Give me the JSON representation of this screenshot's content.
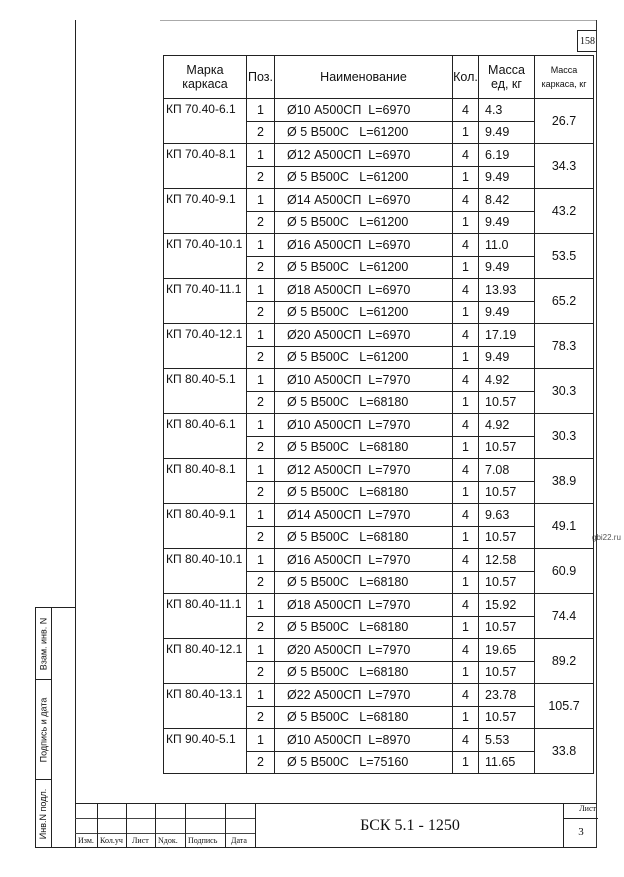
{
  "page_number": "158",
  "watermark": "gbi22.ru",
  "table": {
    "headers": [
      "Марка каркаса",
      "Поз.",
      "Наименование",
      "Кол.",
      "Масса ед, кг",
      "Масса каркаса, кг"
    ],
    "groups": [
      {
        "mark": "КП 70.40-6.1",
        "total": "26.7",
        "rows": [
          [
            "1",
            "Ø10 А500СП  L=6970",
            "4",
            "4.3"
          ],
          [
            "2",
            "Ø 5 В500С   L=61200",
            "1",
            "9.49"
          ]
        ]
      },
      {
        "mark": "КП 70.40-8.1",
        "total": "34.3",
        "rows": [
          [
            "1",
            "Ø12 А500СП  L=6970",
            "4",
            "6.19"
          ],
          [
            "2",
            "Ø 5 В500С   L=61200",
            "1",
            "9.49"
          ]
        ]
      },
      {
        "mark": "КП 70.40-9.1",
        "total": "43.2",
        "rows": [
          [
            "1",
            "Ø14 А500СП  L=6970",
            "4",
            "8.42"
          ],
          [
            "2",
            "Ø 5 В500С   L=61200",
            "1",
            "9.49"
          ]
        ]
      },
      {
        "mark": "КП 70.40-10.1",
        "total": "53.5",
        "rows": [
          [
            "1",
            "Ø16 А500СП  L=6970",
            "4",
            "11.0"
          ],
          [
            "2",
            "Ø 5 В500С   L=61200",
            "1",
            "9.49"
          ]
        ]
      },
      {
        "mark": "КП 70.40-11.1",
        "total": "65.2",
        "rows": [
          [
            "1",
            "Ø18 А500СП  L=6970",
            "4",
            "13.93"
          ],
          [
            "2",
            "Ø 5 В500С   L=61200",
            "1",
            "9.49"
          ]
        ]
      },
      {
        "mark": "КП 70.40-12.1",
        "total": "78.3",
        "rows": [
          [
            "1",
            "Ø20 А500СП  L=6970",
            "4",
            "17.19"
          ],
          [
            "2",
            "Ø 5 В500С   L=61200",
            "1",
            "9.49"
          ]
        ]
      },
      {
        "mark": "КП 80.40-5.1",
        "total": "30.3",
        "rows": [
          [
            "1",
            "Ø10 А500СП  L=7970",
            "4",
            "4.92"
          ],
          [
            "2",
            "Ø 5 В500С   L=68180",
            "1",
            "10.57"
          ]
        ]
      },
      {
        "mark": "КП 80.40-6.1",
        "total": "30.3",
        "rows": [
          [
            "1",
            "Ø10 А500СП  L=7970",
            "4",
            "4.92"
          ],
          [
            "2",
            "Ø 5 В500С   L=68180",
            "1",
            "10.57"
          ]
        ]
      },
      {
        "mark": "КП 80.40-8.1",
        "total": "38.9",
        "rows": [
          [
            "1",
            "Ø12 А500СП  L=7970",
            "4",
            "7.08"
          ],
          [
            "2",
            "Ø 5 В500С   L=68180",
            "1",
            "10.57"
          ]
        ]
      },
      {
        "mark": "КП 80.40-9.1",
        "total": "49.1",
        "rows": [
          [
            "1",
            "Ø14 А500СП  L=7970",
            "4",
            "9.63"
          ],
          [
            "2",
            "Ø 5 В500С   L=68180",
            "1",
            "10.57"
          ]
        ]
      },
      {
        "mark": "КП 80.40-10.1",
        "total": "60.9",
        "rows": [
          [
            "1",
            "Ø16 А500СП  L=7970",
            "4",
            "12.58"
          ],
          [
            "2",
            "Ø 5 В500С   L=68180",
            "1",
            "10.57"
          ]
        ]
      },
      {
        "mark": "КП 80.40-11.1",
        "total": "74.4",
        "rows": [
          [
            "1",
            "Ø18 А500СП  L=7970",
            "4",
            "15.92"
          ],
          [
            "2",
            "Ø 5 В500С   L=68180",
            "1",
            "10.57"
          ]
        ]
      },
      {
        "mark": "КП 80.40-12.1",
        "total": "89.2",
        "rows": [
          [
            "1",
            "Ø20 А500СП  L=7970",
            "4",
            "19.65"
          ],
          [
            "2",
            "Ø 5 В500С   L=68180",
            "1",
            "10.57"
          ]
        ]
      },
      {
        "mark": "КП 80.40-13.1",
        "total": "105.7",
        "rows": [
          [
            "1",
            "Ø22 А500СП  L=7970",
            "4",
            "23.78"
          ],
          [
            "2",
            "Ø 5 В500С   L=68180",
            "1",
            "10.57"
          ]
        ]
      },
      {
        "mark": "КП 90.40-5.1",
        "total": "33.8",
        "rows": [
          [
            "1",
            "Ø10 А500СП  L=8970",
            "4",
            "5.53"
          ],
          [
            "2",
            "Ø 5 В500С   L=75160",
            "1",
            "11.65"
          ]
        ]
      }
    ]
  },
  "side_labels": [
    "Взам. инв. N",
    "Подпись и дата",
    "Инв.N подл."
  ],
  "stamp": {
    "labels": [
      "Изм.",
      "Кол.уч",
      "Лист",
      "Nдок.",
      "Подпись",
      "Дата"
    ],
    "code": "БСК 5.1 - 1250",
    "sheet_label": "Лист",
    "sheet_number": "3"
  }
}
